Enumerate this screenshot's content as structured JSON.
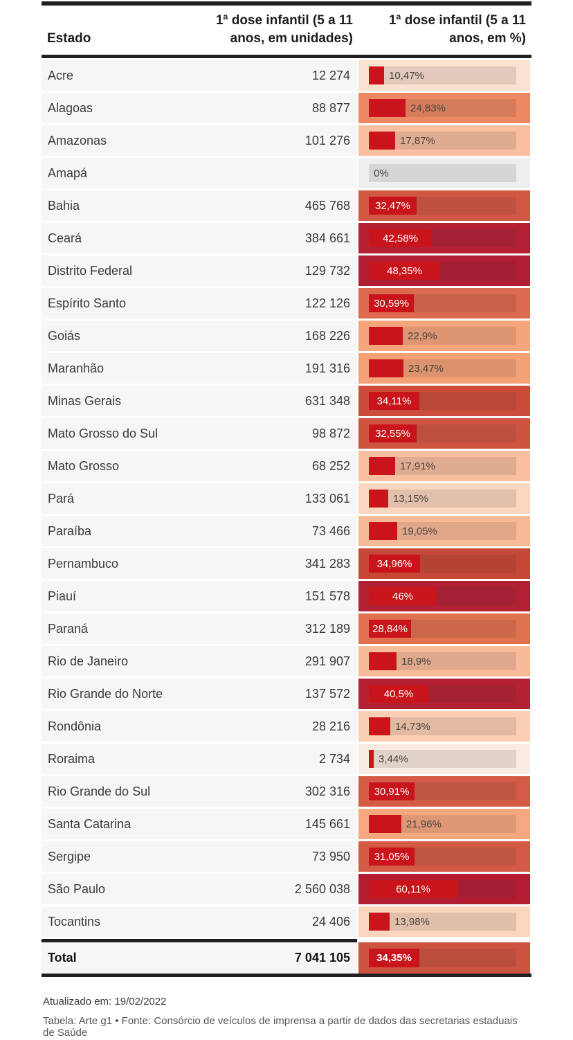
{
  "header": {
    "col_state": "Estado",
    "col_units": "1ª dose infantil (5 a 11\nanos, em unidades)",
    "col_pct": "1ª dose infantil (5 a 11\nanos, em %)"
  },
  "rows": [
    {
      "state": "Acre",
      "units": "12 274",
      "pct": 10.47,
      "pct_label": "10,47%",
      "heat": "#fbe1d0"
    },
    {
      "state": "Alagoas",
      "units": "88 877",
      "pct": 24.83,
      "pct_label": "24,83%",
      "heat": "#ee8862"
    },
    {
      "state": "Amazonas",
      "units": "101 276",
      "pct": 17.87,
      "pct_label": "17,87%",
      "heat": "#f9bfa0"
    },
    {
      "state": "Amapá",
      "units": "",
      "pct": 0,
      "pct_label": "0%",
      "heat": "#eeeeee"
    },
    {
      "state": "Bahia",
      "units": "465 768",
      "pct": 32.47,
      "pct_label": "32,47%",
      "heat": "#d15742"
    },
    {
      "state": "Ceará",
      "units": "384 661",
      "pct": 42.58,
      "pct_label": "42,58%",
      "heat": "#b41f34"
    },
    {
      "state": "Distrito Federal",
      "units": "129 732",
      "pct": 48.35,
      "pct_label": "48,35%",
      "heat": "#b11d32"
    },
    {
      "state": "Espírito Santo",
      "units": "122 126",
      "pct": 30.59,
      "pct_label": "30,59%",
      "heat": "#dc6a4e"
    },
    {
      "state": "Goiás",
      "units": "168 226",
      "pct": 22.9,
      "pct_label": "22,9%",
      "heat": "#f5a57c"
    },
    {
      "state": "Maranhão",
      "units": "191 316",
      "pct": 23.47,
      "pct_label": "23,47%",
      "heat": "#f4a176"
    },
    {
      "state": "Minas Gerais",
      "units": "631 348",
      "pct": 34.11,
      "pct_label": "34,11%",
      "heat": "#cb4c3b"
    },
    {
      "state": "Mato Grosso do Sul",
      "units": "98 872",
      "pct": 32.55,
      "pct_label": "32,55%",
      "heat": "#cf5440"
    },
    {
      "state": "Mato Grosso",
      "units": "68 252",
      "pct": 17.91,
      "pct_label": "17,91%",
      "heat": "#f9bfa0"
    },
    {
      "state": "Pará",
      "units": "133 061",
      "pct": 13.15,
      "pct_label": "13,15%",
      "heat": "#fbd6bf"
    },
    {
      "state": "Paraíba",
      "units": "73 466",
      "pct": 19.05,
      "pct_label": "19,05%",
      "heat": "#f8b996"
    },
    {
      "state": "Pernambuco",
      "units": "341 283",
      "pct": 34.96,
      "pct_label": "34,96%",
      "heat": "#c74736"
    },
    {
      "state": "Piauí",
      "units": "151 578",
      "pct": 46,
      "pct_label": "46%",
      "heat": "#b22033"
    },
    {
      "state": "Paraná",
      "units": "312 189",
      "pct": 28.84,
      "pct_label": "28,84%",
      "heat": "#e0714e"
    },
    {
      "state": "Rio de Janeiro",
      "units": "291 907",
      "pct": 18.9,
      "pct_label": "18,9%",
      "heat": "#f8bb9a"
    },
    {
      "state": "Rio Grande do Norte",
      "units": "137 572",
      "pct": 40.5,
      "pct_label": "40,5%",
      "heat": "#b52134"
    },
    {
      "state": "Rondônia",
      "units": "28 216",
      "pct": 14.73,
      "pct_label": "14,73%",
      "heat": "#fbcfb3"
    },
    {
      "state": "Roraima",
      "units": "2 734",
      "pct": 3.44,
      "pct_label": "3,44%",
      "heat": "#f8ece2"
    },
    {
      "state": "Rio Grande do Sul",
      "units": "302 316",
      "pct": 30.91,
      "pct_label": "30,91%",
      "heat": "#d45c46"
    },
    {
      "state": "Santa Catarina",
      "units": "145 661",
      "pct": 21.96,
      "pct_label": "21,96%",
      "heat": "#f5a77f"
    },
    {
      "state": "Sergipe",
      "units": "73 950",
      "pct": 31.05,
      "pct_label": "31,05%",
      "heat": "#d35a44"
    },
    {
      "state": "São Paulo",
      "units": "2 560 038",
      "pct": 60.11,
      "pct_label": "60,11%",
      "heat": "#b31c31"
    },
    {
      "state": "Tocantins",
      "units": "24 406",
      "pct": 13.98,
      "pct_label": "13,98%",
      "heat": "#fbd5bd"
    }
  ],
  "total": {
    "state": "Total",
    "units": "7 041 105",
    "pct": 34.35,
    "pct_label": "34,35%",
    "heat": "#cd5240"
  },
  "footer": {
    "updated": "Atualizado em: 19/02/2022",
    "credit": "Tabela: Arte g1 • Fonte: Consórcio de veículos de imprensa a partir de dados das secretarias estaduais de Saúde"
  },
  "colors": {
    "bar_red": "#c8141a",
    "rule_black": "#202020",
    "row_bg": "#f6f6f6",
    "label_dark": "#4a4440",
    "label_light": "#ffffff"
  },
  "chart_data": {
    "type": "table",
    "title": "1ª dose infantil (5 a 11 anos) por estado",
    "columns": [
      "Estado",
      "1ª dose infantil (5 a 11 anos, em unidades)",
      "1ª dose infantil (5 a 11 anos, em %)"
    ],
    "rows": [
      [
        "Acre",
        12274,
        10.47
      ],
      [
        "Alagoas",
        88877,
        24.83
      ],
      [
        "Amazonas",
        101276,
        17.87
      ],
      [
        "Amapá",
        null,
        0
      ],
      [
        "Bahia",
        465768,
        32.47
      ],
      [
        "Ceará",
        384661,
        42.58
      ],
      [
        "Distrito Federal",
        129732,
        48.35
      ],
      [
        "Espírito Santo",
        122126,
        30.59
      ],
      [
        "Goiás",
        168226,
        22.9
      ],
      [
        "Maranhão",
        191316,
        23.47
      ],
      [
        "Minas Gerais",
        631348,
        34.11
      ],
      [
        "Mato Grosso do Sul",
        98872,
        32.55
      ],
      [
        "Mato Grosso",
        68252,
        17.91
      ],
      [
        "Pará",
        133061,
        13.15
      ],
      [
        "Paraíba",
        73466,
        19.05
      ],
      [
        "Pernambuco",
        341283,
        34.96
      ],
      [
        "Piauí",
        151578,
        46
      ],
      [
        "Paraná",
        312189,
        28.84
      ],
      [
        "Rio de Janeiro",
        291907,
        18.9
      ],
      [
        "Rio Grande do Norte",
        137572,
        40.5
      ],
      [
        "Rondônia",
        28216,
        14.73
      ],
      [
        "Roraima",
        2734,
        3.44
      ],
      [
        "Rio Grande do Sul",
        302316,
        30.91
      ],
      [
        "Santa Catarina",
        145661,
        21.96
      ],
      [
        "Sergipe",
        73950,
        31.05
      ],
      [
        "São Paulo",
        2560038,
        60.11
      ],
      [
        "Tocantins",
        24406,
        13.98
      ]
    ],
    "total": [
      "Total",
      7041105,
      34.35
    ],
    "bar_column": "1ª dose infantil (5 a 11 anos, em %)",
    "bar_scale": [
      0,
      100
    ],
    "heatmap": true,
    "legend_position": "none",
    "grid": false
  }
}
